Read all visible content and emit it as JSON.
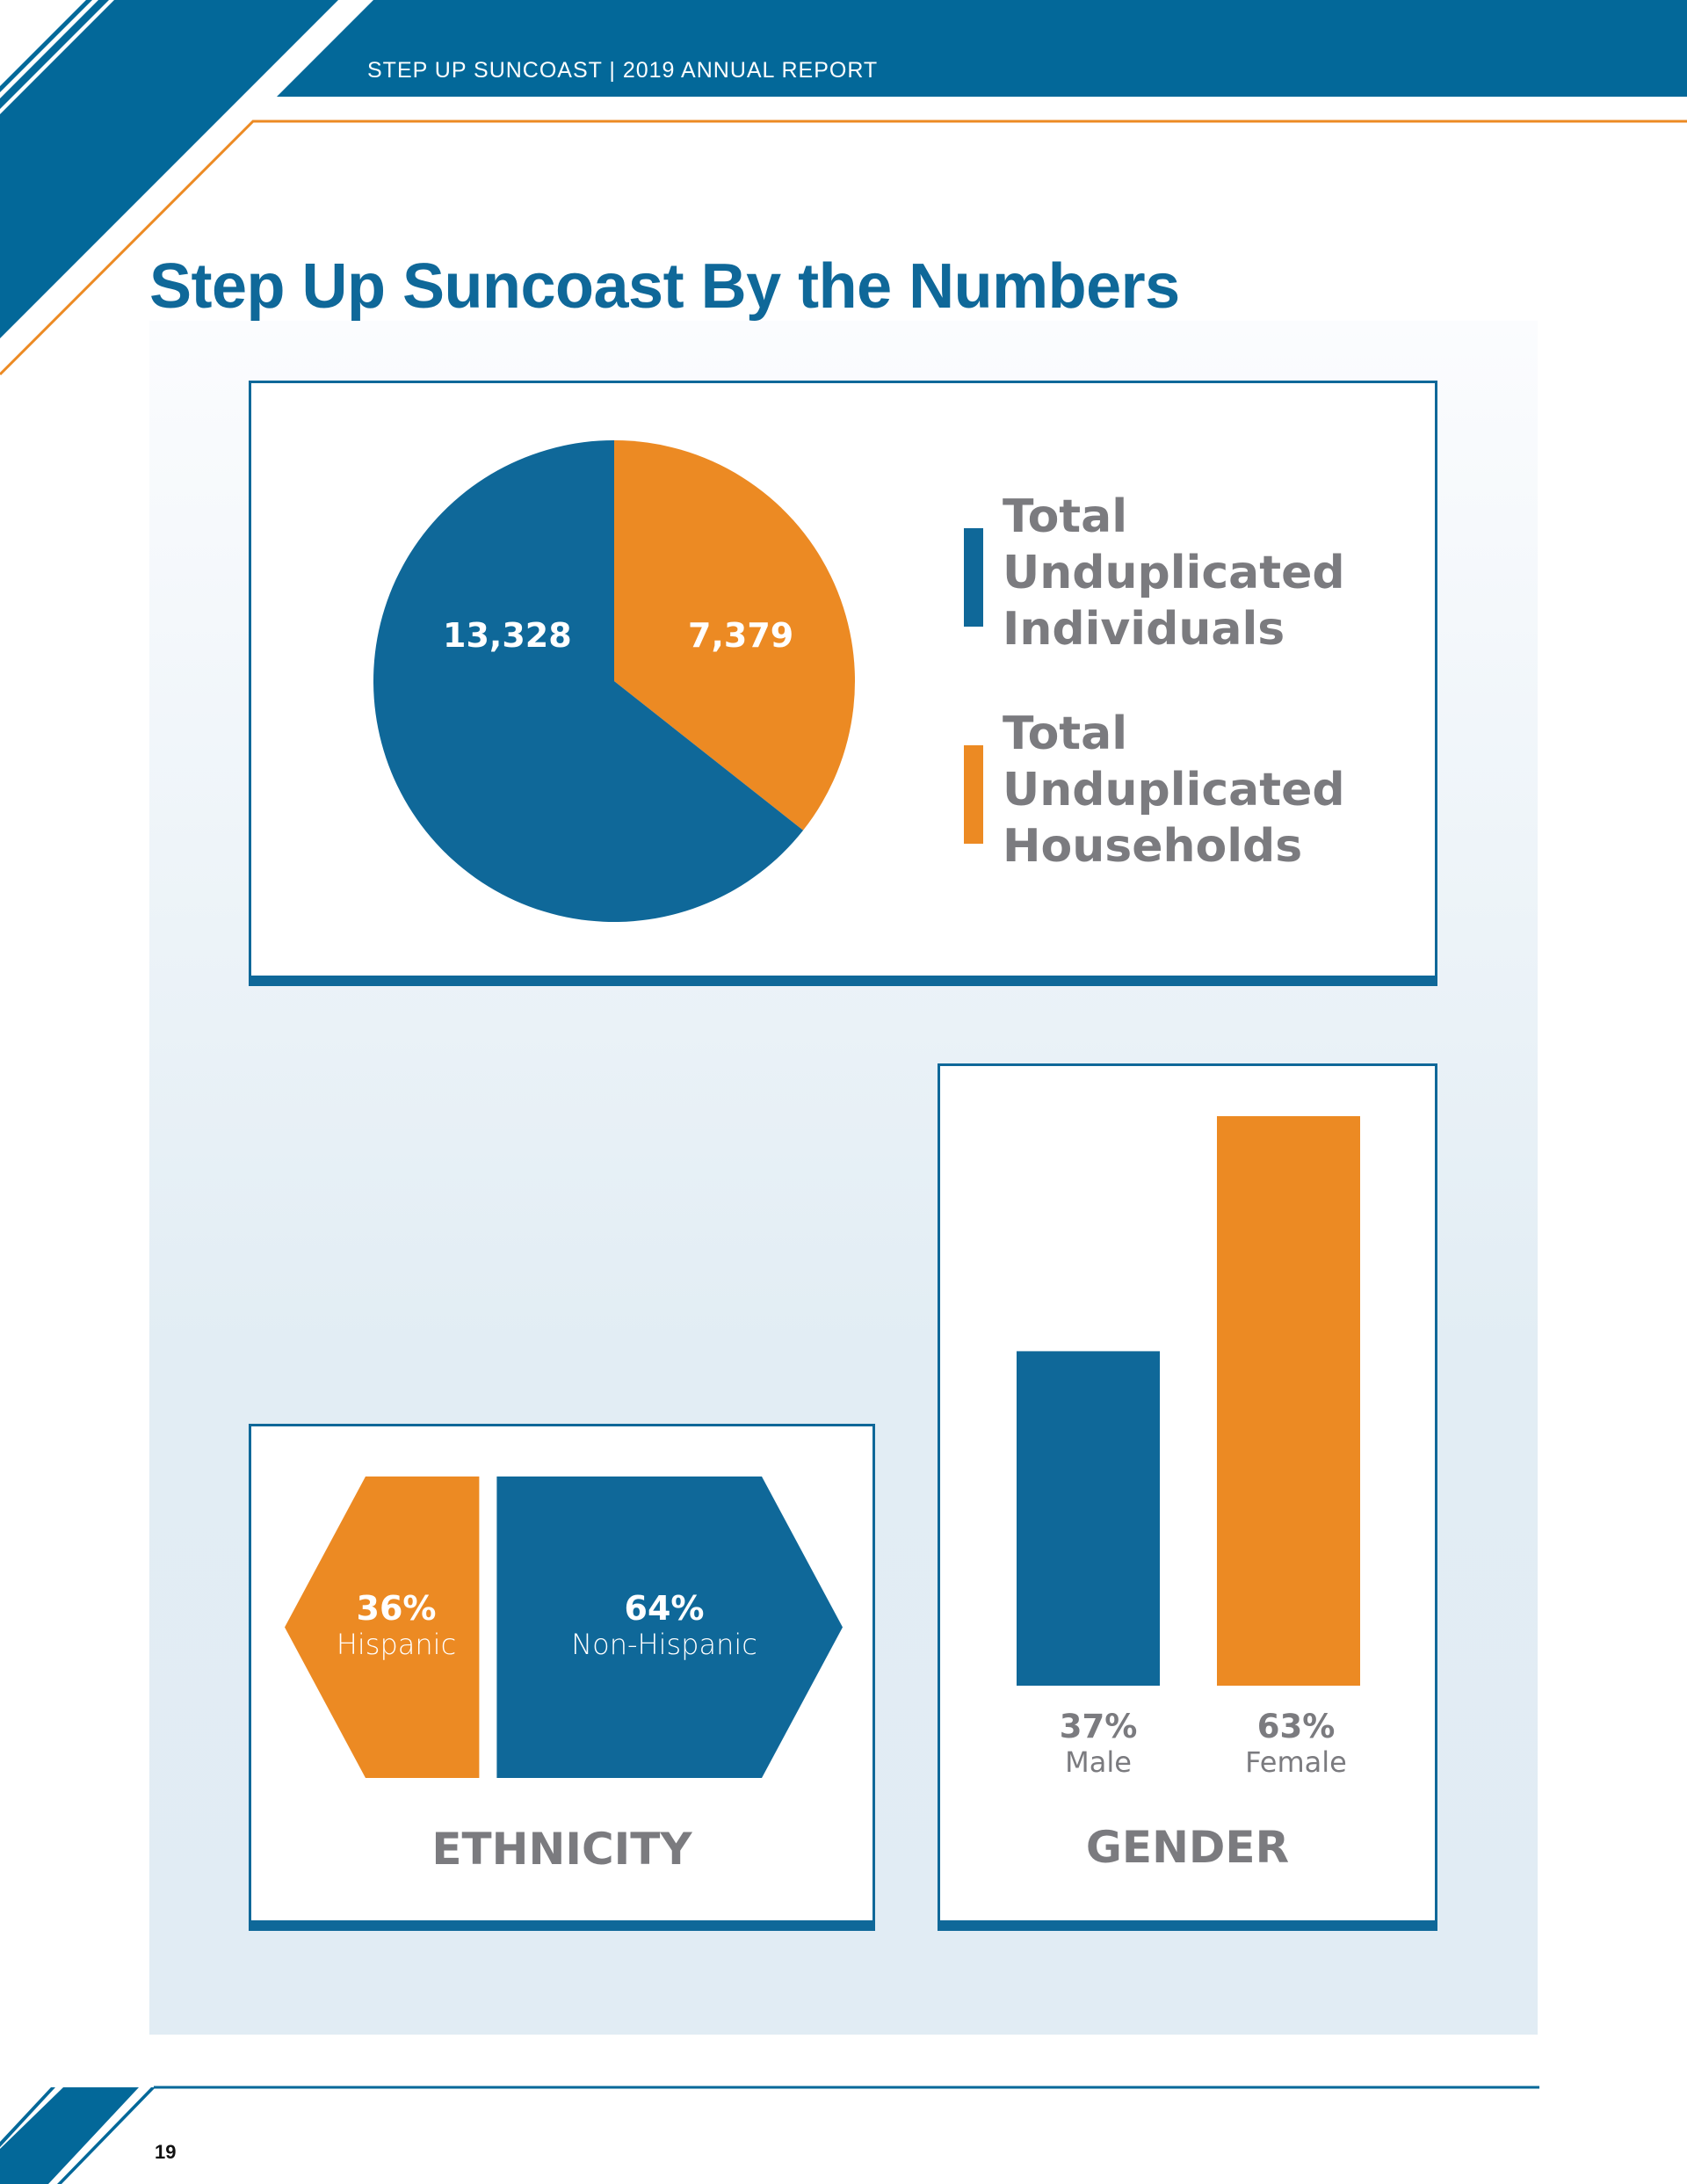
{
  "header": {
    "text": "STEP UP SUNCOAST | 2019 ANNUAL REPORT"
  },
  "page": {
    "title": "Step Up Suncoast By the Numbers",
    "page_number": "19"
  },
  "colors": {
    "blue": "#0f6899",
    "orange": "#ec8a23",
    "gray_text": "#7b7b7f",
    "panel": "#e2edf4"
  },
  "chart_data": [
    {
      "type": "pie",
      "title": "",
      "slices": [
        {
          "label": "Total Unduplicated Individuals",
          "value": 13328,
          "display": "13,328",
          "color": "#0f6899"
        },
        {
          "label": "Total Unduplicated Households",
          "value": 7379,
          "display": "7,379",
          "color": "#ec8a23"
        }
      ],
      "legend": {
        "placement": "right",
        "entries": [
          {
            "lines": [
              "Total",
              "Unduplicated",
              "Individuals"
            ],
            "color": "#0f6899"
          },
          {
            "lines": [
              "Total",
              "Unduplicated",
              "Households"
            ],
            "color": "#ec8a23"
          }
        ]
      }
    },
    {
      "type": "bar",
      "title": "ETHNICITY",
      "orientation": "horizontal-proportional",
      "categories": [
        "Hispanic",
        "Non-Hispanic"
      ],
      "values": [
        36,
        64
      ],
      "labels": [
        "36%",
        "64%"
      ],
      "colors": [
        "#ec8a23",
        "#0f6899"
      ]
    },
    {
      "type": "bar",
      "title": "GENDER",
      "categories": [
        "Male",
        "Female"
      ],
      "values": [
        37,
        63
      ],
      "labels": [
        "37%",
        "63%"
      ],
      "colors": [
        "#0f6899",
        "#ec8a23"
      ],
      "ylim": [
        0,
        63
      ]
    }
  ]
}
